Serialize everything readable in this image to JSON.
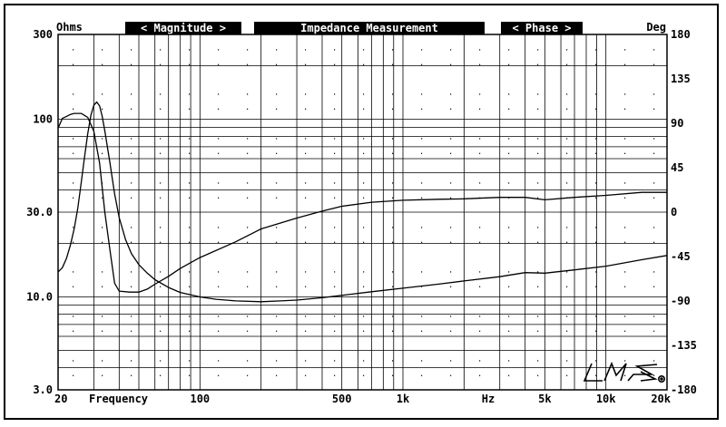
{
  "chart_data": {
    "type": "line",
    "title": "Impedance Measurement",
    "header": {
      "magnitude_label": "< Magnitude >",
      "phase_label": "< Phase >",
      "left_unit": "Ohms",
      "right_unit": "Deg"
    },
    "xlabel": "Frequency",
    "x_unit_label": "Hz",
    "x_scale": "log",
    "xlim": [
      20,
      20000
    ],
    "x_ticks": [
      {
        "value": 20,
        "label": "20"
      },
      {
        "value": 100,
        "label": "100"
      },
      {
        "value": 500,
        "label": "500"
      },
      {
        "value": 1000,
        "label": "1k"
      },
      {
        "value": 5000,
        "label": "5k"
      },
      {
        "value": 10000,
        "label": "10k"
      },
      {
        "value": 20000,
        "label": "20k"
      }
    ],
    "y_left": {
      "scale": "log",
      "lim": [
        3,
        300
      ],
      "ticks": [
        {
          "value": 300,
          "label": "300"
        },
        {
          "value": 100,
          "label": "100"
        },
        {
          "value": 30,
          "label": "30.0"
        },
        {
          "value": 10,
          "label": "10.0"
        },
        {
          "value": 3,
          "label": "3.0"
        }
      ]
    },
    "y_right": {
      "scale": "linear",
      "lim": [
        -180,
        180
      ],
      "ticks": [
        180,
        135,
        90,
        45,
        0,
        -45,
        -90,
        -135,
        -180
      ]
    },
    "grid": true,
    "series": [
      {
        "name": "Magnitude",
        "axis": "left",
        "x": [
          20,
          21,
          22,
          23,
          24,
          25,
          26,
          27,
          28,
          29,
          30,
          31,
          32,
          33,
          34,
          36,
          38,
          40,
          43,
          46,
          50,
          55,
          60,
          70,
          80,
          100,
          120,
          150,
          200,
          250,
          300,
          400,
          500,
          700,
          1000,
          1500,
          2000,
          3000,
          4000,
          5000,
          7000,
          10000,
          15000,
          20000
        ],
        "y": [
          13.8,
          14.6,
          16.5,
          19.6,
          24.1,
          31.5,
          44,
          61.6,
          83,
          105,
          120,
          125,
          119,
          104,
          86,
          57,
          38,
          28,
          21,
          17.5,
          15.2,
          13.6,
          12.5,
          11.3,
          10.6,
          10.0,
          9.7,
          9.5,
          9.4,
          9.5,
          9.6,
          9.9,
          10.2,
          10.7,
          11.2,
          11.8,
          12.3,
          13.0,
          13.7,
          13.6,
          14.2,
          14.9,
          16.2,
          17.1
        ]
      },
      {
        "name": "Phase",
        "axis": "right",
        "x": [
          20,
          21,
          22,
          23,
          24,
          26,
          28,
          30,
          32,
          34,
          36,
          38,
          40,
          45,
          50,
          55,
          60,
          70,
          80,
          100,
          150,
          200,
          300,
          400,
          500,
          700,
          1000,
          1500,
          2000,
          3000,
          4000,
          5000,
          7000,
          10000,
          15000,
          20000
        ],
        "y": [
          85,
          95,
          97,
          99,
          100,
          100,
          96,
          82,
          50,
          0,
          -38,
          -72,
          -80,
          -81,
          -81,
          -78,
          -73,
          -65,
          -57,
          -46,
          -30,
          -17,
          -6,
          1,
          6,
          10,
          12,
          13,
          13.5,
          15,
          15,
          12.5,
          15,
          17,
          20,
          20
        ]
      }
    ],
    "watermark": "LMS"
  }
}
